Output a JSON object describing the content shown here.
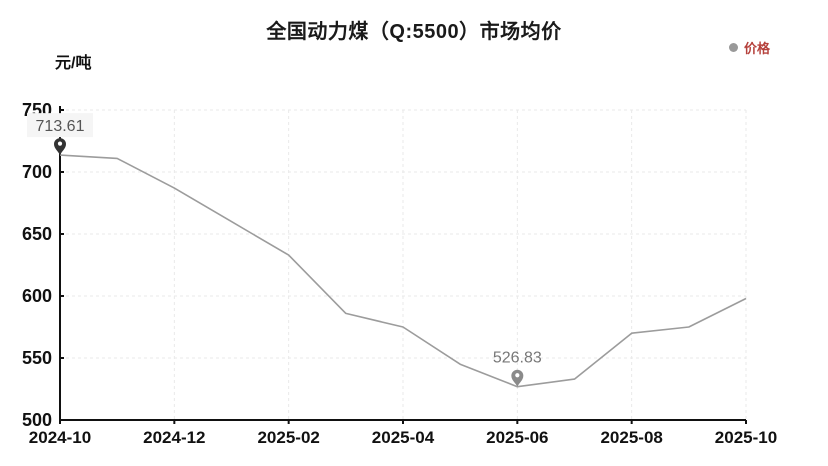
{
  "title": "全国动力煤（Q:5500）市场均价",
  "legend": {
    "label": "价格",
    "dot_color": "#999999",
    "text_color": "#b5413c"
  },
  "y_unit": "元/吨",
  "chart_data": {
    "type": "line",
    "title": "全国动力煤（Q:5500）市场均价",
    "ylabel": "元/吨",
    "xlabel": "",
    "legend_position": "top-right",
    "series_name": "价格",
    "categories": [
      "2024-10",
      "2024-11",
      "2024-12",
      "2025-01",
      "2025-02",
      "2025-03",
      "2025-04",
      "2025-05",
      "2025-06",
      "2025-07",
      "2025-08",
      "2025-09",
      "2025-10"
    ],
    "values": [
      713.61,
      711,
      687,
      660,
      633,
      586,
      575,
      545,
      526.83,
      533,
      570,
      575,
      598
    ],
    "x_tick_indices": [
      0,
      2,
      4,
      6,
      8,
      10,
      12
    ],
    "x_tick_labels": [
      "2024-10",
      "2024-12",
      "2025-02",
      "2025-04",
      "2025-06",
      "2025-08",
      "2025-10"
    ],
    "y_ticks": [
      500,
      550,
      600,
      650,
      700,
      750
    ],
    "ylim": [
      500,
      750
    ],
    "grid": true,
    "line_color": "#9c9c9c",
    "grid_color": "#e9e9e9",
    "axis_color": "#111111",
    "annotations": [
      {
        "index": 0,
        "label": "713.61",
        "pin_color": "#333333",
        "text_color": "#555555",
        "bg": "#f5f5f5"
      },
      {
        "index": 8,
        "label": "526.83",
        "pin_color": "#8a8a8a",
        "text_color": "#777777",
        "bg": ""
      }
    ]
  }
}
